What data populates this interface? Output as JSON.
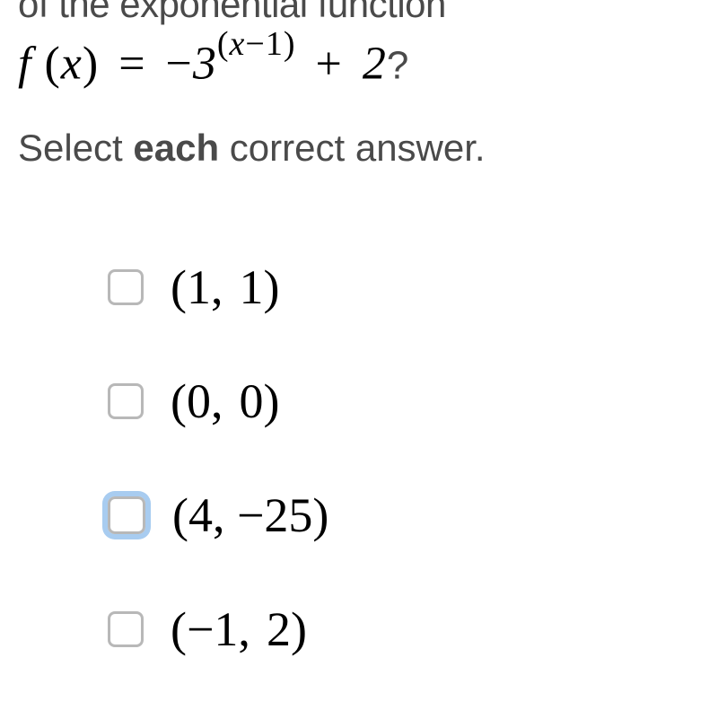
{
  "question": {
    "prefix_text": "of the exponential function",
    "function_name": "f",
    "variable": "x",
    "base": "3",
    "exponent_var": "x",
    "exponent_const": "1",
    "constant": "2",
    "suffix": "?"
  },
  "instruction": {
    "before": "Select ",
    "bold": "each",
    "after": " correct answer."
  },
  "options": [
    {
      "text": "(1,  1)",
      "focused": false
    },
    {
      "text": "(0,  0)",
      "focused": false
    },
    {
      "text": "(4, −25)",
      "focused": true
    },
    {
      "text": "(−1,  2)",
      "focused": false
    }
  ],
  "colors": {
    "text_gray": "#4a4a4a",
    "text_black": "#000000",
    "checkbox_border": "#b8b8b8",
    "focus_ring": "#a8ccf0",
    "background": "#ffffff"
  },
  "typography": {
    "question_fontsize": 42,
    "equation_fontsize": 52,
    "instruction_fontsize": 42,
    "option_fontsize": 54,
    "exponent_fontsize": 38
  }
}
